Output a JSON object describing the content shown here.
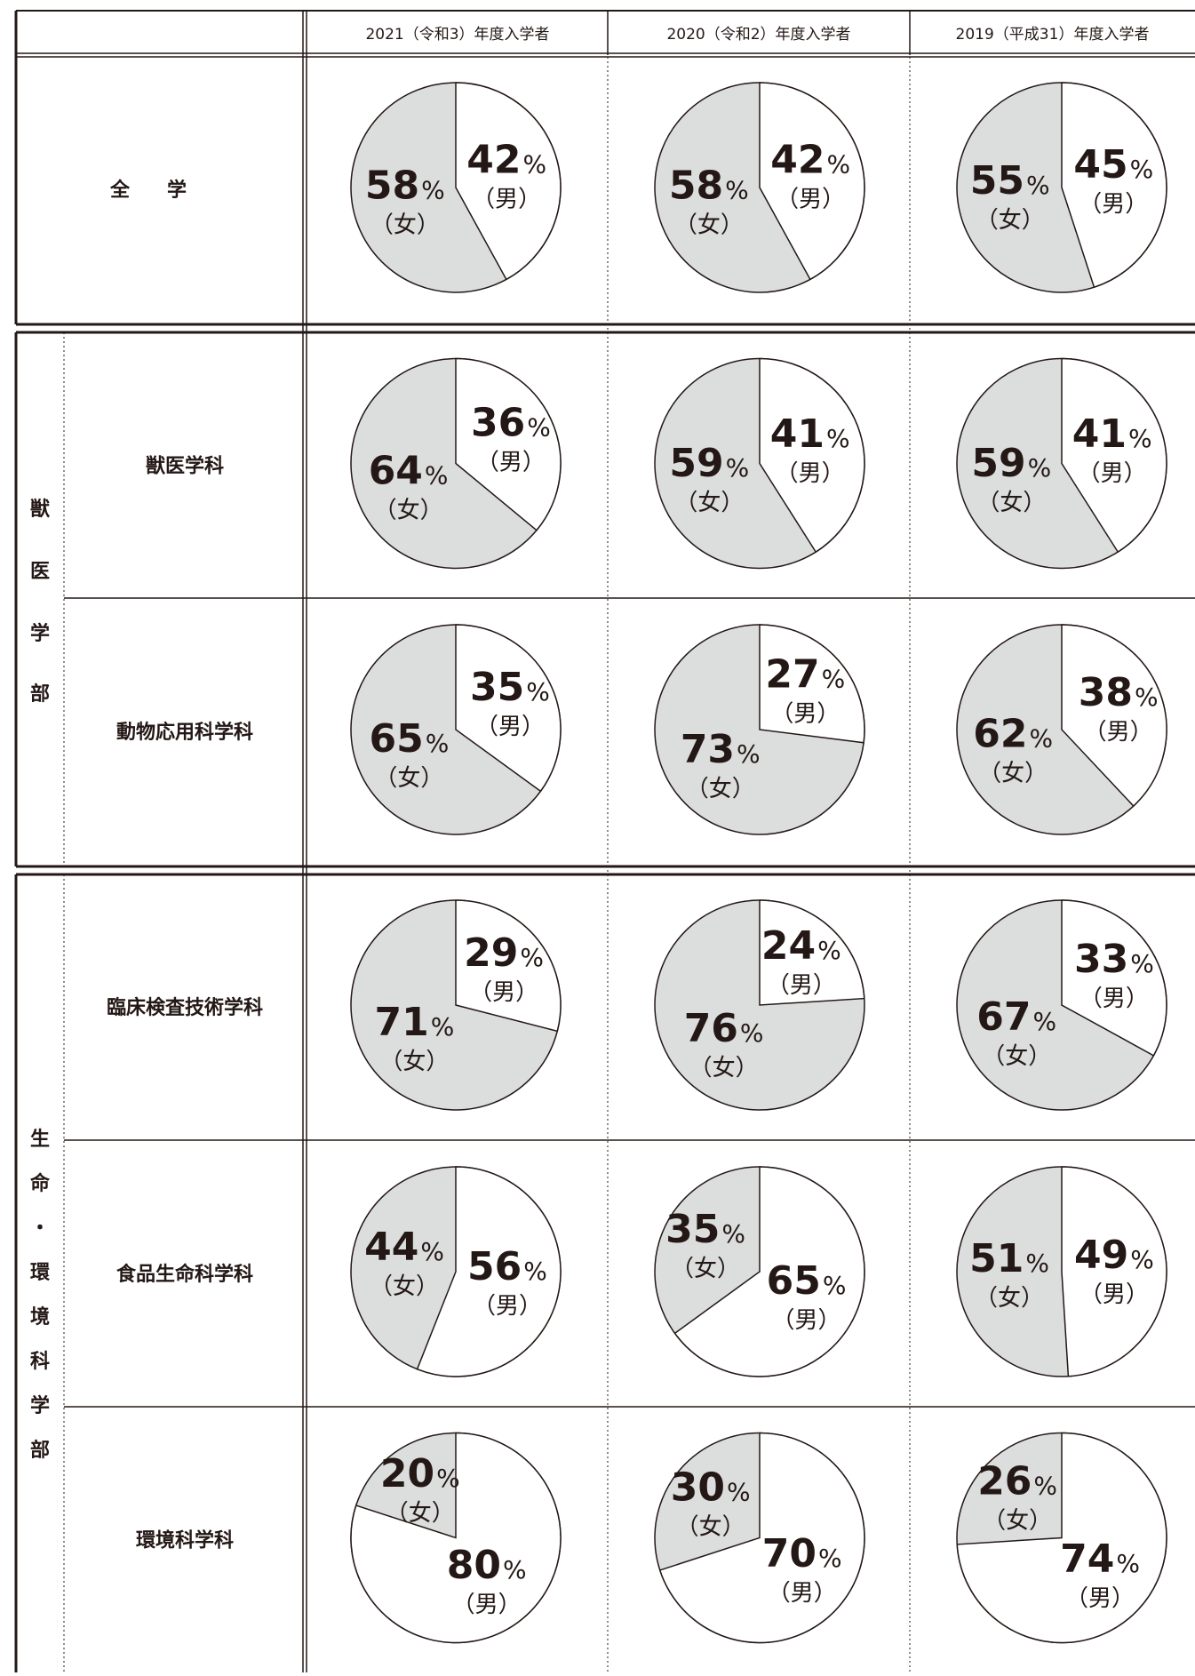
{
  "header": {
    "years": [
      "2021（令和3）年度入学者",
      "2020（令和2）年度入学者",
      "2019（平成31）年度入学者"
    ]
  },
  "labels": {
    "male": "（男）",
    "female": "（女）",
    "percent": "%"
  },
  "groups": [
    {
      "label": "",
      "vertical": []
    },
    {
      "label": "獣医学部",
      "vertical": [
        "獣",
        "医",
        "学",
        "部"
      ]
    },
    {
      "label": "生命・環境科学部",
      "vertical": [
        "生",
        "命",
        "・",
        "環",
        "境",
        "科",
        "学",
        "部"
      ]
    }
  ],
  "colors": {
    "female_fill": "#dcdddd",
    "male_fill": "#ffffff",
    "line": "#231815"
  },
  "chart_data": {
    "type": "pie",
    "series_names": [
      "男",
      "女"
    ],
    "rows": [
      {
        "name": "全　学",
        "group": 0,
        "values": [
          {
            "male": 42,
            "female": 58
          },
          {
            "male": 42,
            "female": 58
          },
          {
            "male": 45,
            "female": 55
          }
        ]
      },
      {
        "name": "獣医学科",
        "group": 1,
        "values": [
          {
            "male": 36,
            "female": 64
          },
          {
            "male": 41,
            "female": 59
          },
          {
            "male": 41,
            "female": 59
          }
        ]
      },
      {
        "name": "動物応用科学科",
        "group": 1,
        "values": [
          {
            "male": 35,
            "female": 65
          },
          {
            "male": 27,
            "female": 73
          },
          {
            "male": 38,
            "female": 62
          }
        ]
      },
      {
        "name": "臨床検査技術学科",
        "group": 2,
        "values": [
          {
            "male": 29,
            "female": 71
          },
          {
            "male": 24,
            "female": 76
          },
          {
            "male": 33,
            "female": 67
          }
        ]
      },
      {
        "name": "食品生命科学科",
        "group": 2,
        "values": [
          {
            "male": 56,
            "female": 44
          },
          {
            "male": 65,
            "female": 35
          },
          {
            "male": 49,
            "female": 51
          }
        ]
      },
      {
        "name": "環境科学科",
        "group": 2,
        "values": [
          {
            "male": 80,
            "female": 20
          },
          {
            "male": 70,
            "female": 30
          },
          {
            "male": 74,
            "female": 26
          }
        ]
      }
    ]
  }
}
